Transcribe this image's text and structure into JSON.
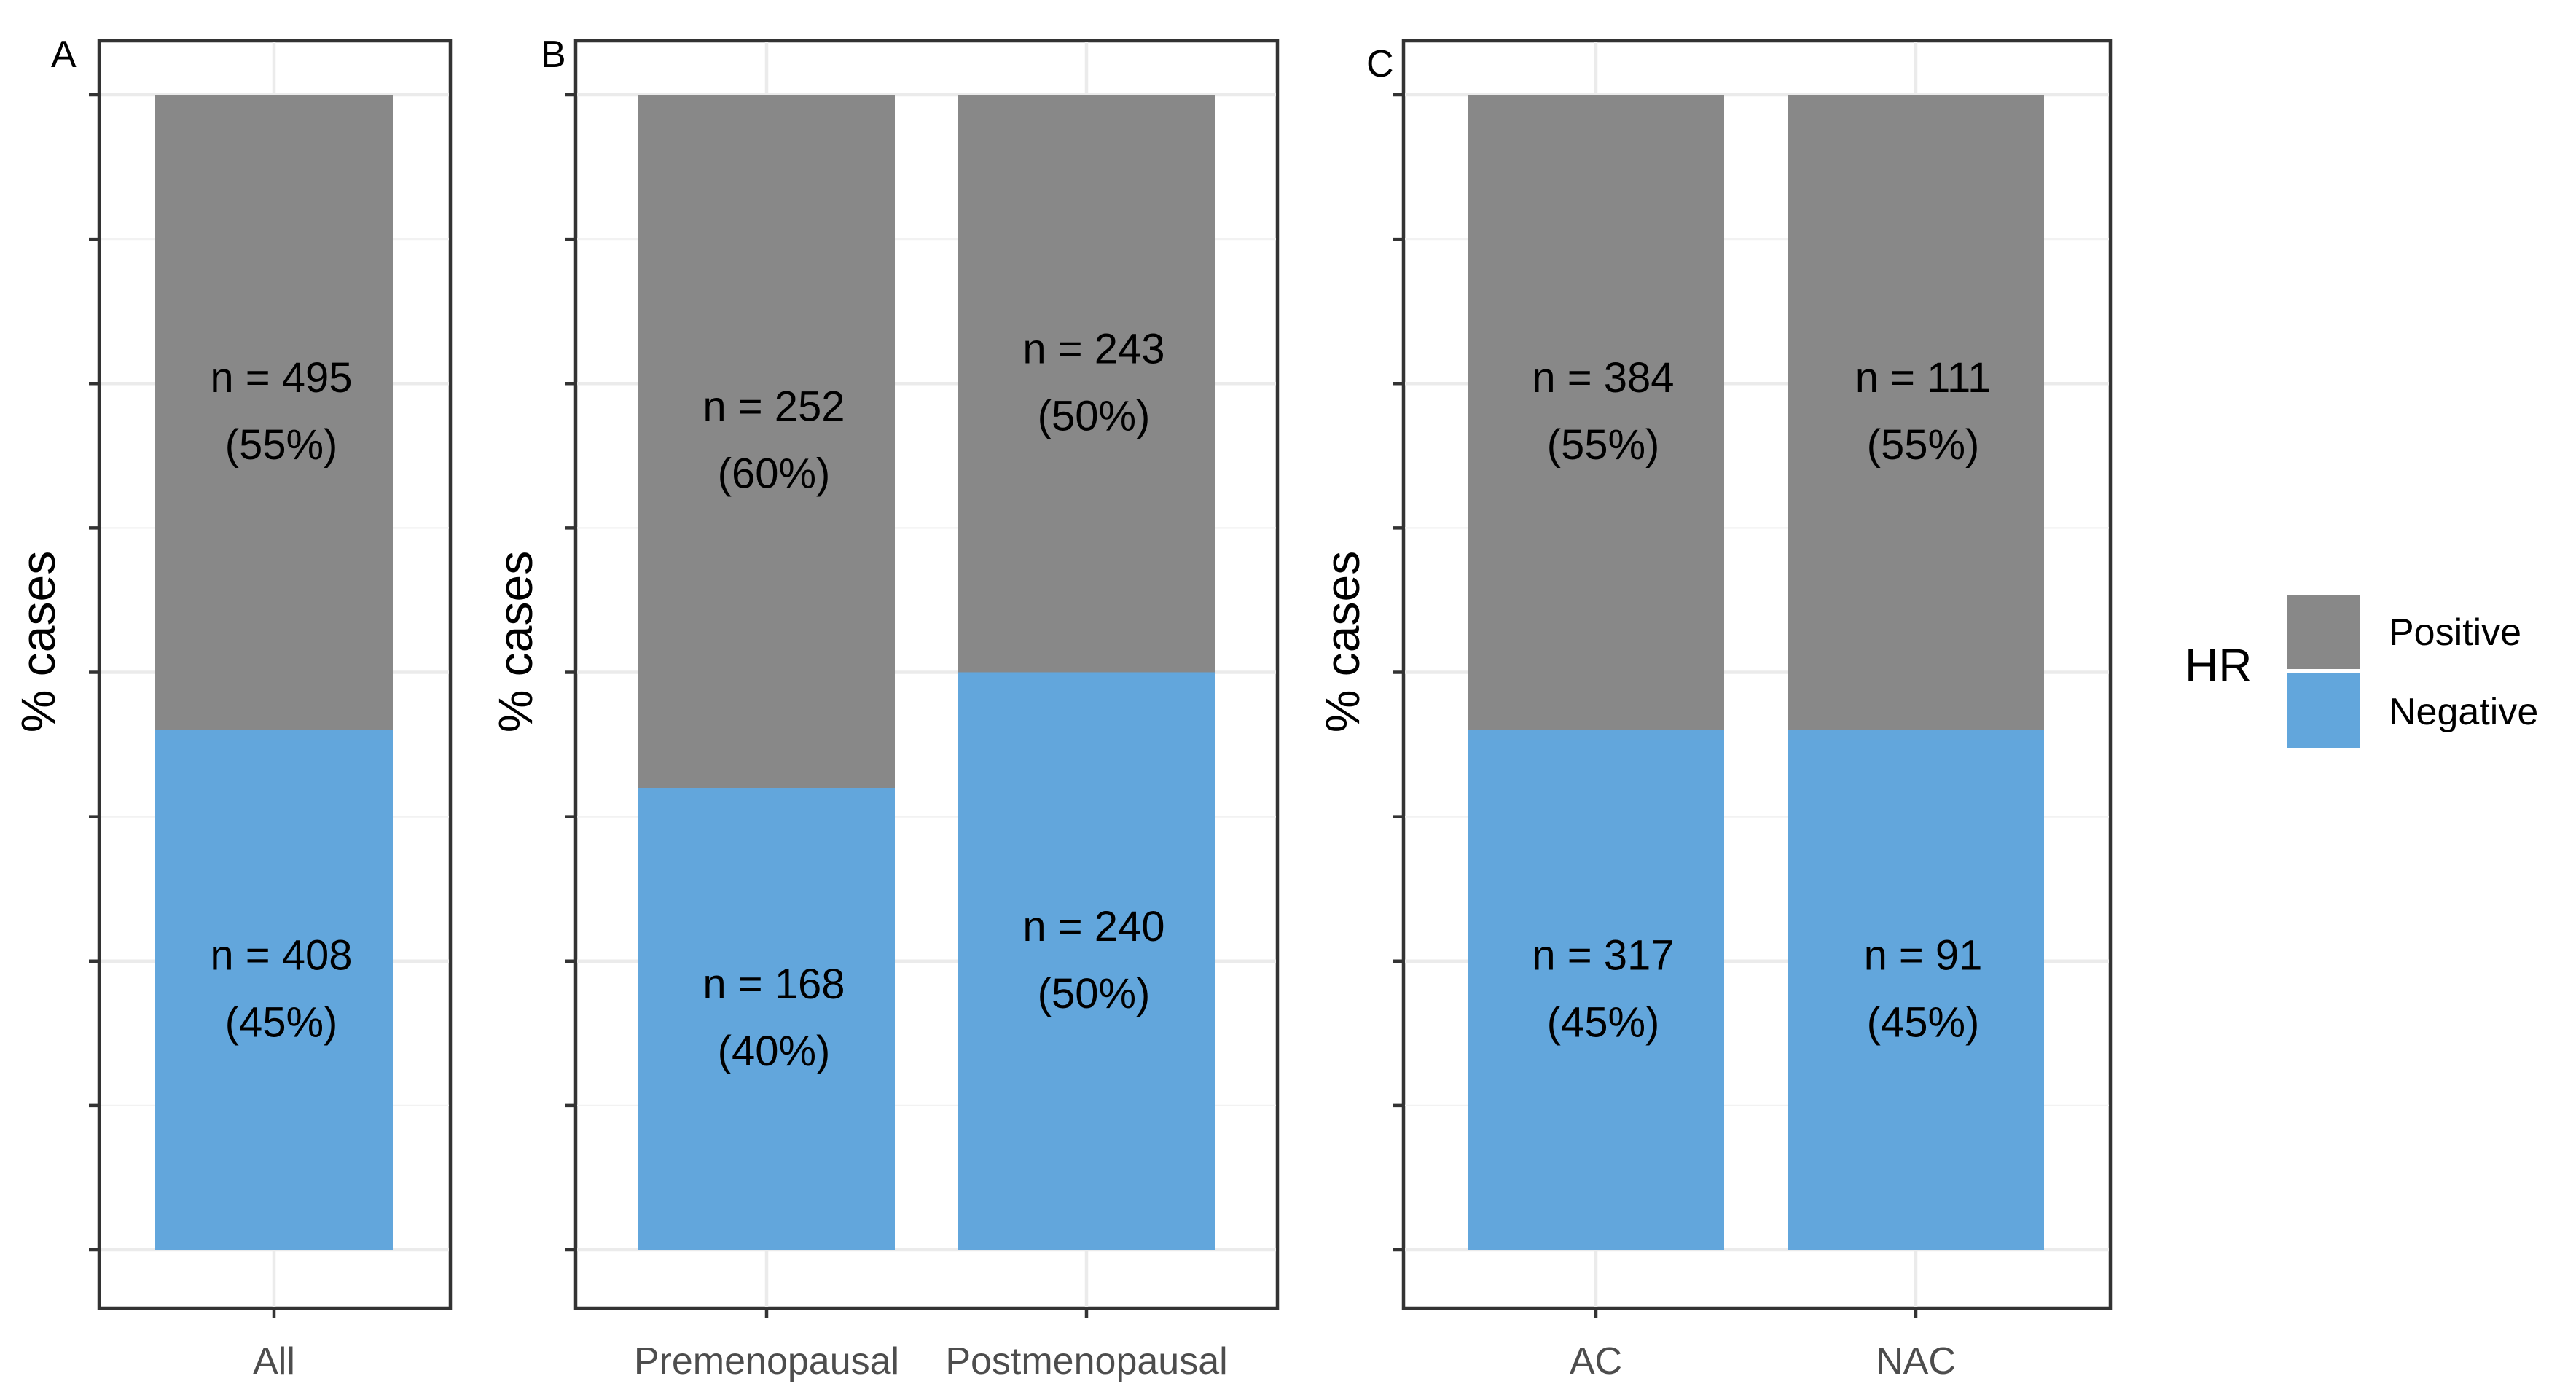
{
  "chart_data": {
    "type": "bar",
    "stacked": true,
    "normalized": true,
    "ylabel": "% cases",
    "ylim": [
      0,
      100
    ],
    "legend": {
      "title": "HR",
      "placement": "right",
      "entries": [
        {
          "name": "Positive",
          "color": "#888888"
        },
        {
          "name": "Negative",
          "color": "#62a6dc"
        }
      ]
    },
    "panels": [
      {
        "tag": "A",
        "categories": [
          "All"
        ],
        "series": [
          {
            "name": "Negative",
            "counts": [
              408
            ],
            "percents": [
              45
            ],
            "labels": [
              "n = 408"
            ],
            "pct_labels": [
              "(45%)"
            ]
          },
          {
            "name": "Positive",
            "counts": [
              495
            ],
            "percents": [
              55
            ],
            "labels": [
              "n = 495"
            ],
            "pct_labels": [
              "(55%)"
            ]
          }
        ]
      },
      {
        "tag": "B",
        "categories": [
          "Premenopausal",
          "Postmenopausal"
        ],
        "series": [
          {
            "name": "Negative",
            "counts": [
              168,
              240
            ],
            "percents": [
              40,
              50
            ],
            "labels": [
              "n = 168",
              "n = 240"
            ],
            "pct_labels": [
              "(40%)",
              "(50%)"
            ]
          },
          {
            "name": "Positive",
            "counts": [
              252,
              243
            ],
            "percents": [
              60,
              50
            ],
            "labels": [
              "n = 252",
              "n = 243"
            ],
            "pct_labels": [
              "(60%)",
              "(50%)"
            ]
          }
        ]
      },
      {
        "tag": "C",
        "categories": [
          "AC",
          "NAC"
        ],
        "series": [
          {
            "name": "Negative",
            "counts": [
              317,
              91
            ],
            "percents": [
              45,
              45
            ],
            "labels": [
              "n = 317",
              "n = 91"
            ],
            "pct_labels": [
              "(45%)",
              "(45%)"
            ]
          },
          {
            "name": "Positive",
            "counts": [
              384,
              111
            ],
            "percents": [
              55,
              55
            ],
            "labels": [
              "n = 384",
              "n = 111"
            ],
            "pct_labels": [
              "(55%)",
              "(55%)"
            ]
          }
        ]
      }
    ]
  }
}
